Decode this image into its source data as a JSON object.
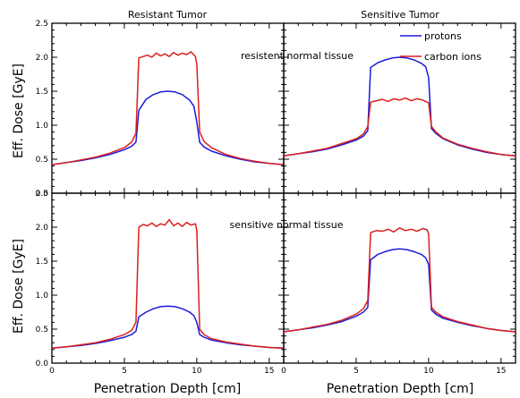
{
  "figure": {
    "column_titles": [
      "Resistant  Tumor",
      "Sensitive  Tumor"
    ],
    "ylabel": "Eff. Dose [GyE]",
    "xlabel": "Penetration Depth [cm]",
    "annotations": [
      "resistent normal tissue",
      "sensitive normal tissue"
    ],
    "legend": {
      "protons": "protons",
      "carbon_ions": "carbon ions"
    },
    "colors": {
      "protons": "#1a1adc",
      "carbon_ions": "#dc1e1e",
      "axes": "#000000"
    },
    "x_ticks": [
      "0",
      "5",
      "10",
      "15"
    ],
    "y_ticks": [
      "0.0",
      "0.5",
      "1.0",
      "1.5",
      "2.0",
      "2.5"
    ]
  },
  "chart_data": [
    {
      "type": "line",
      "panel": "top-left",
      "title": "Resistant  Tumor",
      "xlabel": "",
      "ylabel": "Eff. Dose [GyE]",
      "xlim": [
        0,
        16
      ],
      "ylim": [
        0.0,
        2.5
      ],
      "series": [
        {
          "name": "protons",
          "color": "#1a1adc",
          "x": [
            0,
            1,
            2,
            3,
            4,
            5,
            5.5,
            5.8,
            6,
            6.5,
            7,
            7.5,
            8,
            8.5,
            9,
            9.5,
            9.8,
            10,
            10.2,
            10.5,
            11,
            12,
            13,
            14,
            15,
            16
          ],
          "y": [
            0.42,
            0.45,
            0.48,
            0.52,
            0.57,
            0.64,
            0.69,
            0.75,
            1.22,
            1.38,
            1.45,
            1.49,
            1.5,
            1.49,
            1.45,
            1.37,
            1.28,
            1.05,
            0.75,
            0.68,
            0.62,
            0.55,
            0.5,
            0.46,
            0.44,
            0.42
          ]
        },
        {
          "name": "carbon ions",
          "color": "#dc1e1e",
          "x": [
            0,
            1,
            2,
            3,
            4,
            5,
            5.5,
            5.8,
            6,
            6.3,
            6.6,
            6.9,
            7.2,
            7.5,
            7.8,
            8.1,
            8.4,
            8.7,
            9,
            9.3,
            9.6,
            9.9,
            10,
            10.2,
            10.5,
            11,
            12,
            13,
            14,
            15,
            16
          ],
          "y": [
            0.42,
            0.45,
            0.49,
            0.53,
            0.59,
            0.67,
            0.75,
            0.88,
            1.99,
            2.01,
            2.03,
            2.0,
            2.06,
            2.02,
            2.05,
            2.01,
            2.07,
            2.03,
            2.06,
            2.04,
            2.08,
            2.01,
            1.9,
            0.9,
            0.76,
            0.67,
            0.57,
            0.51,
            0.47,
            0.44,
            0.42
          ]
        }
      ]
    },
    {
      "type": "line",
      "panel": "top-right",
      "title": "Sensitive  Tumor",
      "xlabel": "",
      "ylabel": "",
      "xlim": [
        0,
        16
      ],
      "ylim": [
        0.0,
        2.5
      ],
      "series": [
        {
          "name": "protons",
          "color": "#1a1adc",
          "x": [
            0,
            1,
            2,
            3,
            4,
            5,
            5.5,
            5.8,
            6,
            6.5,
            7,
            7.5,
            8,
            8.5,
            9,
            9.5,
            9.8,
            10,
            10.2,
            10.5,
            11,
            12,
            13,
            14,
            15,
            16
          ],
          "y": [
            0.55,
            0.58,
            0.61,
            0.65,
            0.71,
            0.78,
            0.84,
            0.92,
            1.85,
            1.92,
            1.96,
            1.99,
            2.0,
            1.99,
            1.96,
            1.91,
            1.86,
            1.7,
            0.95,
            0.88,
            0.8,
            0.71,
            0.65,
            0.6,
            0.57,
            0.55
          ]
        },
        {
          "name": "carbon ions",
          "color": "#dc1e1e",
          "x": [
            0,
            1,
            2,
            3,
            4,
            5,
            5.5,
            5.8,
            6,
            6.4,
            6.8,
            7.2,
            7.6,
            8,
            8.4,
            8.8,
            9.2,
            9.6,
            10,
            10.2,
            10.5,
            11,
            12,
            13,
            14,
            15,
            16
          ],
          "y": [
            0.55,
            0.58,
            0.62,
            0.66,
            0.73,
            0.8,
            0.87,
            0.98,
            1.34,
            1.36,
            1.38,
            1.35,
            1.39,
            1.37,
            1.4,
            1.36,
            1.39,
            1.37,
            1.33,
            0.98,
            0.9,
            0.81,
            0.72,
            0.66,
            0.61,
            0.57,
            0.55
          ]
        }
      ]
    },
    {
      "type": "line",
      "panel": "bottom-left",
      "title": "",
      "xlabel": "Penetration Depth [cm]",
      "ylabel": "Eff. Dose [GyE]",
      "xlim": [
        0,
        16
      ],
      "ylim": [
        0.0,
        2.5
      ],
      "series": [
        {
          "name": "protons",
          "color": "#1a1adc",
          "x": [
            0,
            1,
            2,
            3,
            4,
            5,
            5.5,
            5.8,
            6,
            6.5,
            7,
            7.5,
            8,
            8.5,
            9,
            9.5,
            9.8,
            10,
            10.2,
            10.5,
            11,
            12,
            13,
            14,
            15,
            16
          ],
          "y": [
            0.22,
            0.24,
            0.26,
            0.29,
            0.33,
            0.38,
            0.42,
            0.47,
            0.68,
            0.75,
            0.8,
            0.83,
            0.84,
            0.83,
            0.8,
            0.75,
            0.7,
            0.6,
            0.42,
            0.38,
            0.34,
            0.3,
            0.27,
            0.25,
            0.23,
            0.22
          ]
        },
        {
          "name": "carbon ions",
          "color": "#dc1e1e",
          "x": [
            0,
            1,
            2,
            3,
            4,
            5,
            5.5,
            5.8,
            6,
            6.3,
            6.6,
            6.9,
            7.2,
            7.5,
            7.8,
            8.1,
            8.4,
            8.7,
            9,
            9.3,
            9.6,
            9.9,
            10,
            10.2,
            10.5,
            11,
            12,
            13,
            14,
            15,
            16
          ],
          "y": [
            0.22,
            0.24,
            0.27,
            0.3,
            0.35,
            0.42,
            0.48,
            0.6,
            2.0,
            2.04,
            2.02,
            2.06,
            2.01,
            2.05,
            2.03,
            2.11,
            2.02,
            2.06,
            2.01,
            2.07,
            2.03,
            2.05,
            1.95,
            0.5,
            0.42,
            0.36,
            0.31,
            0.28,
            0.25,
            0.23,
            0.22
          ]
        }
      ]
    },
    {
      "type": "line",
      "panel": "bottom-right",
      "title": "",
      "xlabel": "Penetration Depth [cm]",
      "ylabel": "",
      "xlim": [
        0,
        16
      ],
      "ylim": [
        0.0,
        2.5
      ],
      "series": [
        {
          "name": "protons",
          "color": "#1a1adc",
          "x": [
            0,
            1,
            2,
            3,
            4,
            5,
            5.5,
            5.8,
            6,
            6.5,
            7,
            7.5,
            8,
            8.5,
            9,
            9.5,
            9.8,
            10,
            10.2,
            10.5,
            11,
            12,
            13,
            14,
            15,
            16
          ],
          "y": [
            0.46,
            0.49,
            0.52,
            0.56,
            0.61,
            0.69,
            0.75,
            0.82,
            1.52,
            1.6,
            1.64,
            1.67,
            1.68,
            1.67,
            1.64,
            1.6,
            1.55,
            1.45,
            0.78,
            0.72,
            0.66,
            0.6,
            0.55,
            0.51,
            0.48,
            0.46
          ]
        },
        {
          "name": "carbon ions",
          "color": "#dc1e1e",
          "x": [
            0,
            1,
            2,
            3,
            4,
            5,
            5.5,
            5.8,
            6,
            6.4,
            6.8,
            7.2,
            7.6,
            8,
            8.4,
            8.8,
            9.2,
            9.6,
            9.9,
            10,
            10.2,
            10.5,
            11,
            12,
            13,
            14,
            15,
            16
          ],
          "y": [
            0.46,
            0.49,
            0.53,
            0.57,
            0.63,
            0.72,
            0.8,
            0.92,
            1.92,
            1.95,
            1.94,
            1.97,
            1.93,
            1.99,
            1.95,
            1.97,
            1.94,
            1.98,
            1.96,
            1.9,
            0.82,
            0.75,
            0.68,
            0.61,
            0.56,
            0.51,
            0.48,
            0.46
          ]
        }
      ]
    }
  ]
}
